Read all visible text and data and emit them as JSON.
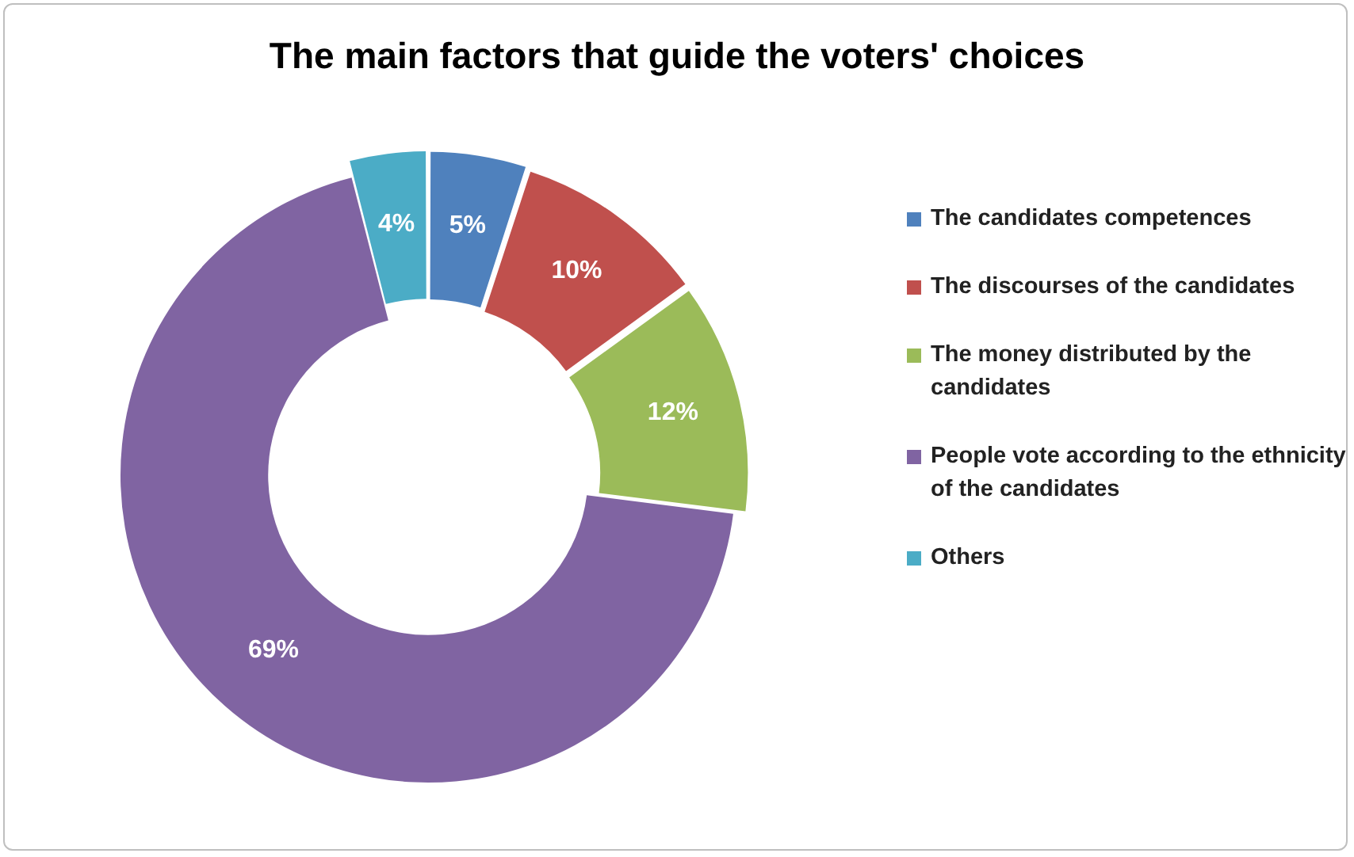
{
  "chart_data": {
    "type": "donut",
    "title": "The main factors that guide the voters' choices",
    "categories": [
      "The candidates competences",
      "The discourses of the candidates",
      "The money distributed by the candidates",
      "People vote according to the ethnicity of the candidates",
      "Others"
    ],
    "values": [
      5,
      10,
      12,
      69,
      4
    ],
    "value_labels": [
      "5%",
      "10%",
      "12%",
      "69%",
      "4%"
    ],
    "colors": [
      "#4f81bd",
      "#c0504d",
      "#9bbb59",
      "#8064a2",
      "#4bacc6"
    ],
    "legend": "right"
  }
}
